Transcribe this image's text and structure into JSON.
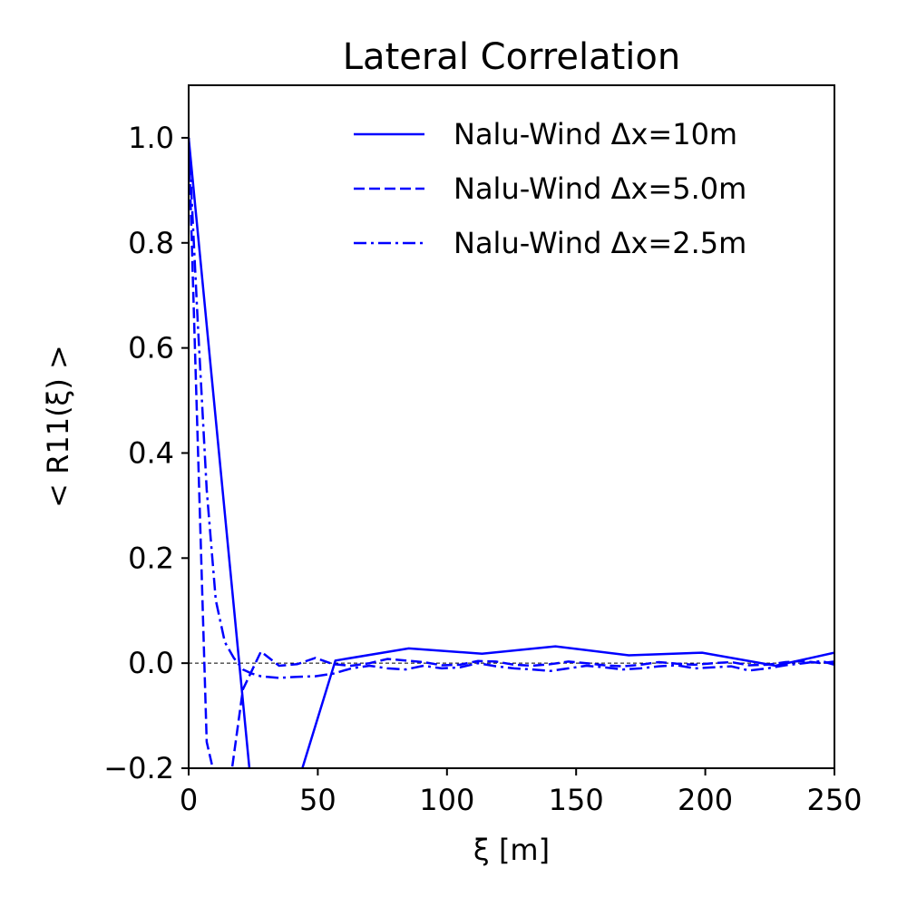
{
  "chart_data": {
    "type": "line",
    "title": "Lateral Correlation",
    "xlabel": "ξ [m]",
    "ylabel": "< R11(ξ) >",
    "xlim": [
      0,
      250
    ],
    "ylim": [
      -0.2,
      1.1
    ],
    "xticks": [
      0,
      50,
      100,
      150,
      200,
      250
    ],
    "xtick_labels": [
      "0",
      "50",
      "100",
      "150",
      "200",
      "250"
    ],
    "yticks": [
      -0.2,
      0.0,
      0.2,
      0.4,
      0.6,
      0.8,
      1.0
    ],
    "ytick_labels": [
      "−0.2",
      "0.0",
      "0.2",
      "0.4",
      "0.6",
      "0.8",
      "1.0"
    ],
    "grid": false,
    "legend_position": "top-right",
    "reference_line": {
      "y": 0.0,
      "style": "dashed",
      "color": "#000000"
    },
    "series": [
      {
        "name": "Nalu-Wind Δx=10m",
        "style": "solid",
        "color": "#0000ff",
        "x": [
          0,
          28.4,
          56.8,
          85.2,
          113.6,
          142.0,
          170.4,
          198.8,
          227.2,
          250
        ],
        "y": [
          1.0,
          -0.45,
          0.005,
          0.028,
          0.018,
          0.032,
          0.015,
          0.02,
          -0.005,
          0.02
        ]
      },
      {
        "name": "Nalu-Wind Δx=5.0m",
        "style": "dashed",
        "color": "#0000ff",
        "x": [
          0,
          7,
          14,
          21,
          28,
          35,
          42,
          49,
          56,
          63,
          70,
          77,
          84,
          91,
          98,
          105,
          112,
          119,
          126,
          133,
          140,
          147,
          154,
          161,
          168,
          175,
          182,
          189,
          196,
          203,
          210,
          217,
          224,
          231,
          238,
          245,
          250
        ],
        "y": [
          1.0,
          -0.15,
          -0.3,
          -0.05,
          0.022,
          -0.005,
          -0.002,
          0.01,
          -0.002,
          -0.005,
          0.0,
          0.008,
          0.005,
          0.002,
          -0.004,
          -0.003,
          0.004,
          0.003,
          -0.003,
          -0.005,
          -0.002,
          0.003,
          0.0,
          -0.004,
          -0.006,
          -0.003,
          0.002,
          -0.001,
          -0.003,
          0.0,
          0.002,
          -0.004,
          -0.003,
          0.002,
          0.004,
          0.0,
          0.003
        ]
      },
      {
        "name": "Nalu-Wind Δx=2.5m",
        "style": "dashdot",
        "color": "#0000ff",
        "x": [
          0,
          3.5,
          7,
          10.5,
          14,
          17.5,
          21,
          24.5,
          28,
          35,
          42,
          49,
          56,
          63,
          70,
          77,
          84,
          91,
          98,
          105,
          112,
          119,
          126,
          133,
          140,
          147,
          154,
          161,
          168,
          175,
          182,
          189,
          196,
          203,
          210,
          217,
          224,
          231,
          238,
          245,
          250
        ],
        "y": [
          1.0,
          0.65,
          0.33,
          0.12,
          0.04,
          0.01,
          -0.012,
          -0.02,
          -0.025,
          -0.028,
          -0.026,
          -0.025,
          -0.02,
          -0.01,
          -0.005,
          -0.01,
          -0.012,
          -0.005,
          -0.01,
          -0.008,
          0.0,
          -0.006,
          -0.01,
          -0.012,
          -0.015,
          -0.01,
          -0.005,
          -0.008,
          -0.012,
          -0.01,
          -0.006,
          -0.004,
          -0.01,
          -0.008,
          -0.006,
          -0.014,
          -0.01,
          -0.004,
          0.0,
          0.004,
          -0.003
        ]
      }
    ]
  }
}
